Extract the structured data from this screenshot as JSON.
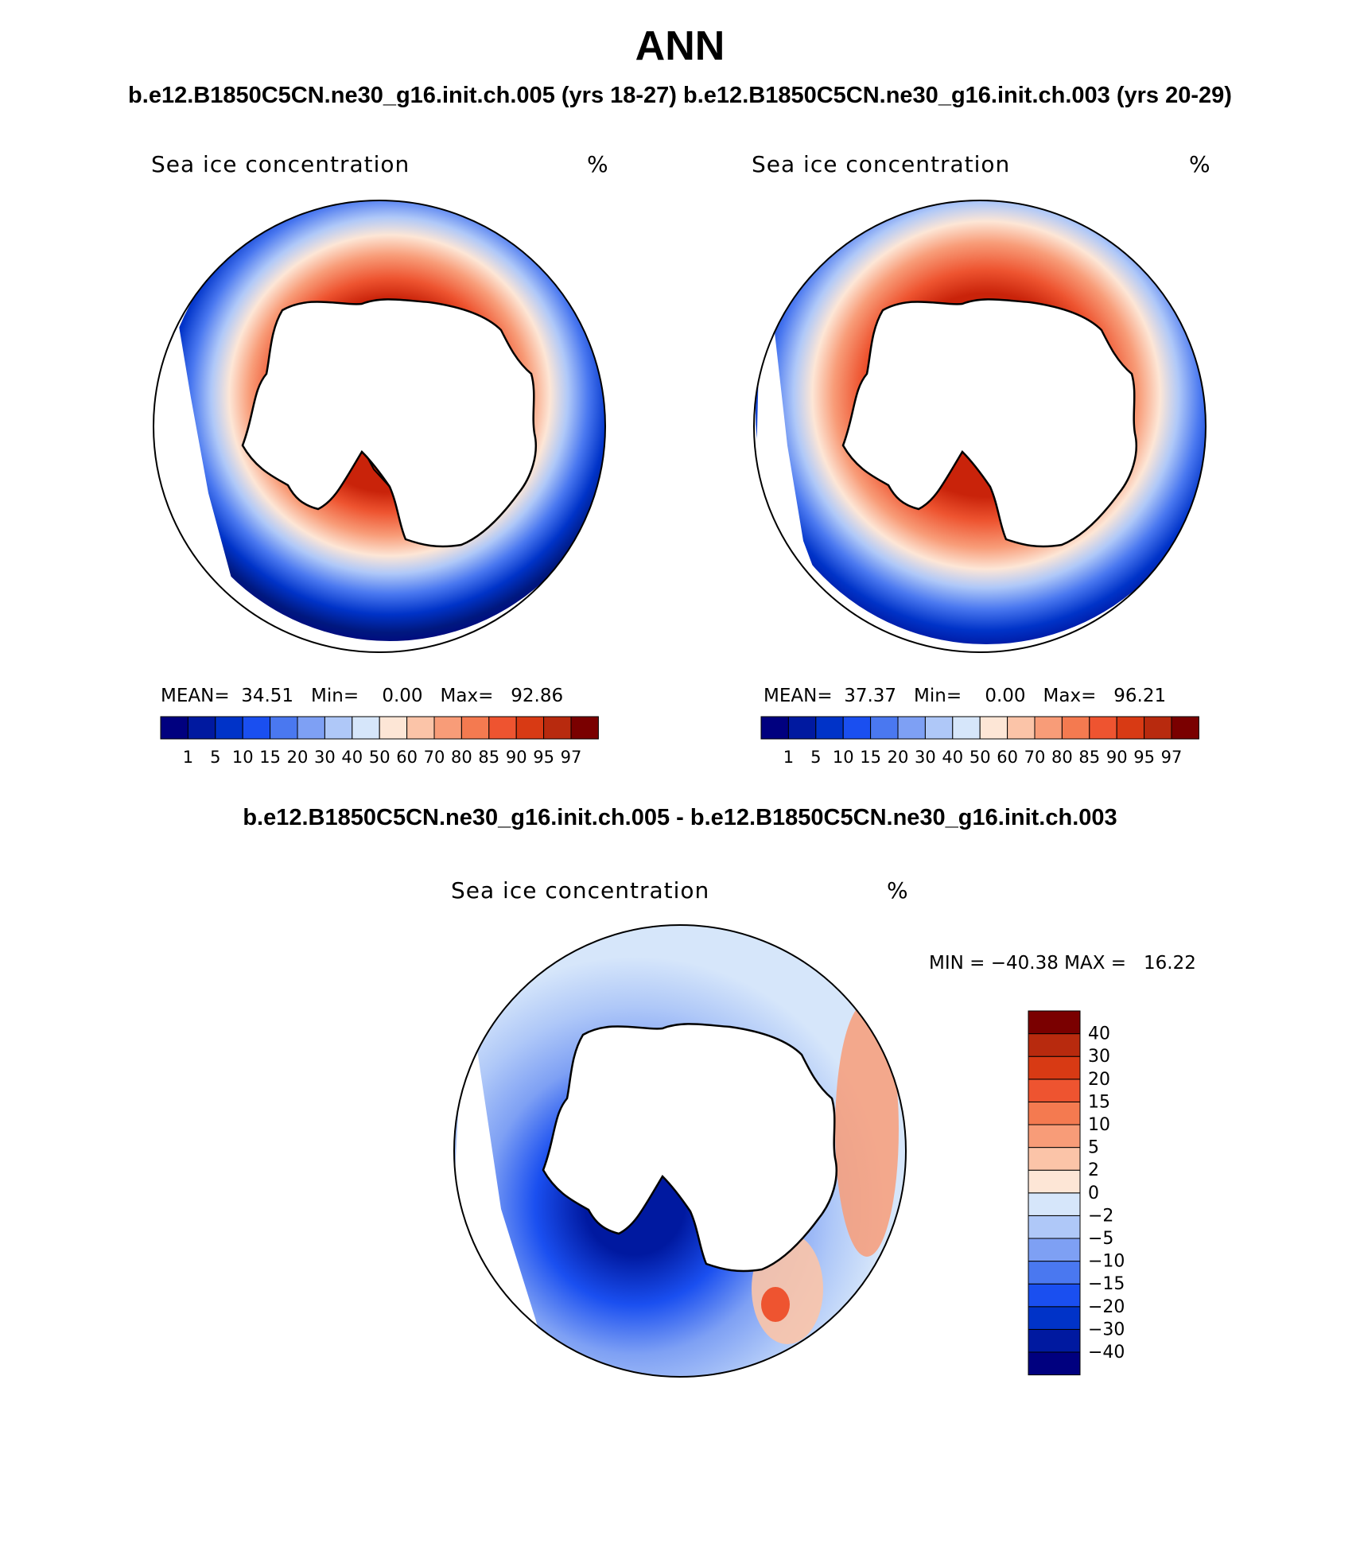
{
  "title": "ANN",
  "subtitle": {
    "case1": "b.e12.B1850C5CN.ne30_g16.init.ch.005 (yrs 18-27)",
    "case2": "b.e12.B1850C5CN.ne30_g16.init.ch.003 (yrs 20-29)"
  },
  "panels": [
    {
      "variable": "Sea ice concentration",
      "units": "%",
      "mean_label": "MEAN=",
      "mean": "34.51",
      "min_label": "Min=",
      "min": "0.00",
      "max_label": "Max=",
      "max": "92.86"
    },
    {
      "variable": "Sea ice concentration",
      "units": "%",
      "mean_label": "MEAN=",
      "mean": "37.37",
      "min_label": "Min=",
      "min": "0.00",
      "max_label": "Max=",
      "max": "96.21"
    }
  ],
  "diff": {
    "title": "b.e12.B1850C5CN.ne30_g16.init.ch.005 - b.e12.B1850C5CN.ne30_g16.init.ch.003",
    "variable": "Sea ice concentration",
    "units": "%",
    "minmax": "MIN = −40.38 MAX =   16.22"
  },
  "abs_colorbar": {
    "colors": [
      "#00007f",
      "#0019a0",
      "#0033c8",
      "#1a4ff0",
      "#4a78f0",
      "#7ea0f4",
      "#afc8f8",
      "#d6e6fa",
      "#fde6d6",
      "#fbc4a8",
      "#f89c78",
      "#f47a50",
      "#ee5430",
      "#d83a14",
      "#b82a0e",
      "#7a0000"
    ],
    "labels": [
      "1",
      "5",
      "10",
      "15",
      "20",
      "30",
      "40",
      "50",
      "60",
      "70",
      "80",
      "85",
      "90",
      "95",
      "97"
    ]
  },
  "diff_colorbar": {
    "colors": [
      "#00007f",
      "#0019a0",
      "#0033c8",
      "#1a4ff0",
      "#4a78f0",
      "#7ea0f4",
      "#afc8f8",
      "#d6e6fa",
      "#fde6d6",
      "#fbc4a8",
      "#f89c78",
      "#f47a50",
      "#ee5430",
      "#d83a14",
      "#b82a0e",
      "#7a0000"
    ],
    "labels": [
      "−40",
      "−30",
      "−20",
      "−15",
      "−10",
      "−5",
      "−2",
      "0",
      "2",
      "5",
      "10",
      "15",
      "20",
      "30",
      "40"
    ]
  }
}
